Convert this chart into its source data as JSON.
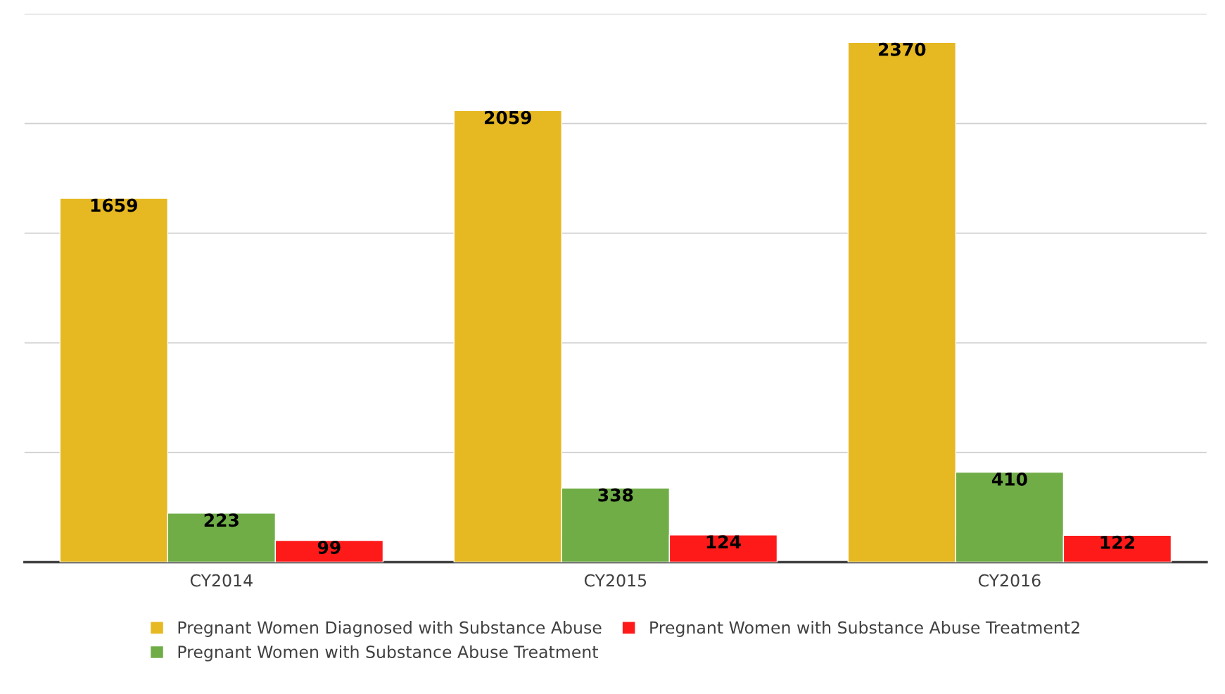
{
  "chart_data": {
    "type": "bar",
    "categories": [
      "CY2014",
      "CY2015",
      "CY2016"
    ],
    "series": [
      {
        "name": "Pregnant Women Diagnosed with Substance Abuse",
        "color": "#e6b822",
        "values": [
          1659,
          2059,
          2370
        ]
      },
      {
        "name": "Pregnant Women with Substance Abuse Treatment",
        "color": "#70ad47",
        "values": [
          223,
          338,
          410
        ]
      },
      {
        "name": "Pregnant Women with Substance Abuse Treatment2",
        "color": "#ff1a1a",
        "values": [
          99,
          124,
          122
        ]
      }
    ],
    "ylim": [
      0,
      2500
    ],
    "yticks": [
      {
        "value": 0,
        "label": null
      },
      {
        "value": 500,
        "label": null
      },
      {
        "value": 1000,
        "label": null
      },
      {
        "value": 1500,
        "label": null
      },
      {
        "value": 2000,
        "label": null
      },
      {
        "value": 2500,
        "label": null
      }
    ],
    "tick_labels": "x",
    "grid": "y",
    "data_labels": true,
    "legend": "bottom"
  }
}
